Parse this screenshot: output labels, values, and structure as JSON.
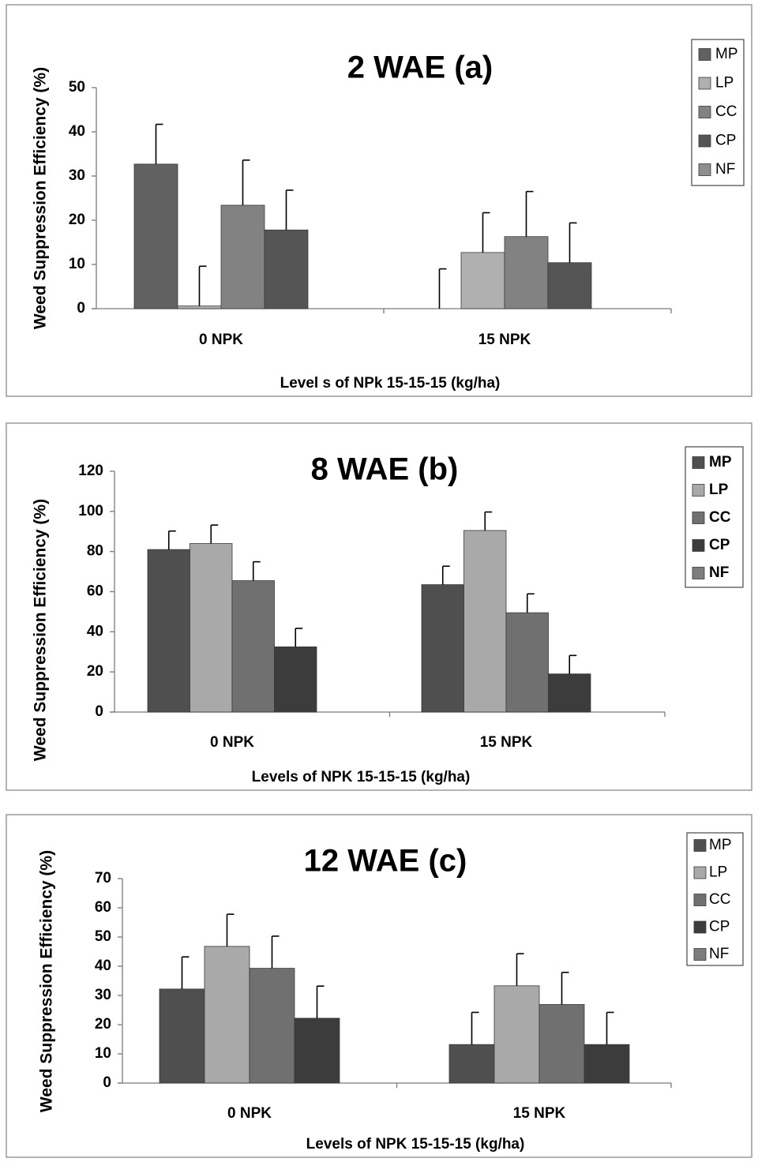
{
  "chart_data": [
    {
      "type": "bar",
      "title": "2 WAE (a)",
      "xlabel": "Level s of NPk  15-15-15  (kg/ha)",
      "ylabel": "Weed Suppression Efficiency (%)",
      "ylim": [
        0,
        50
      ],
      "yticks": [
        0,
        10,
        20,
        30,
        40,
        50
      ],
      "categories": [
        "0 NPK",
        "15 NPK"
      ],
      "series": [
        {
          "name": "MP",
          "values": [
            32.7,
            0
          ],
          "errors": [
            9.0,
            9.0
          ],
          "color": "#616161"
        },
        {
          "name": "LP",
          "values": [
            0.6,
            12.7
          ],
          "errors": [
            9.0,
            9.0
          ],
          "color": "#b0b0b0"
        },
        {
          "name": "CC",
          "values": [
            23.4,
            16.3
          ],
          "errors": [
            10.2,
            10.2
          ],
          "color": "#828282"
        },
        {
          "name": "CP",
          "values": [
            17.8,
            10.4
          ],
          "errors": [
            9.0,
            9.0
          ],
          "color": "#555555"
        },
        {
          "name": "NF",
          "values": [
            0,
            0
          ],
          "errors": [
            0,
            0
          ],
          "color": "#8e8e8e"
        }
      ],
      "legend_position": "top-right",
      "grid": false
    },
    {
      "type": "bar",
      "title": "8 WAE (b)",
      "xlabel": "Levels of NPK 15-15-15 (kg/ha)",
      "ylabel": "Weed Suppression Efficiency (%)",
      "ylim": [
        0,
        120
      ],
      "yticks": [
        0,
        20,
        40,
        60,
        80,
        100,
        120
      ],
      "categories": [
        "0 NPK",
        "15 NPK"
      ],
      "series": [
        {
          "name": "MP",
          "values": [
            81,
            63.5
          ],
          "errors": [
            9.2,
            9.2
          ],
          "color": "#4f4f4f"
        },
        {
          "name": "LP",
          "values": [
            84,
            90.5
          ],
          "errors": [
            9.2,
            9.2
          ],
          "color": "#a9a9a9"
        },
        {
          "name": "CC",
          "values": [
            65.5,
            49.5
          ],
          "errors": [
            9.4,
            9.4
          ],
          "color": "#707070"
        },
        {
          "name": "CP",
          "values": [
            32.5,
            19
          ],
          "errors": [
            9.2,
            9.2
          ],
          "color": "#3c3c3c"
        },
        {
          "name": "NF",
          "values": [
            0,
            0
          ],
          "errors": [
            0,
            0
          ],
          "color": "#7d7d7d"
        }
      ],
      "legend_position": "top-right",
      "grid": false
    },
    {
      "type": "bar",
      "title": "12 WAE (c)",
      "xlabel": "Levels  of NPK 15-15-15 (kg/ha)",
      "ylabel": "Weed Suppression Efficiency (%)",
      "ylim": [
        0,
        70
      ],
      "yticks": [
        0,
        10,
        20,
        30,
        40,
        50,
        60,
        70
      ],
      "categories": [
        "0 NPK",
        "15 NPK"
      ],
      "series": [
        {
          "name": "MP",
          "values": [
            32.2,
            13.2
          ],
          "errors": [
            11.0,
            11.0
          ],
          "color": "#4f4f4f"
        },
        {
          "name": "LP",
          "values": [
            46.8,
            33.3
          ],
          "errors": [
            11.0,
            11.0
          ],
          "color": "#a9a9a9"
        },
        {
          "name": "CC",
          "values": [
            39.3,
            26.9
          ],
          "errors": [
            11.0,
            11.0
          ],
          "color": "#707070"
        },
        {
          "name": "CP",
          "values": [
            22.2,
            13.2
          ],
          "errors": [
            11.0,
            11.0
          ],
          "color": "#3c3c3c"
        },
        {
          "name": "NF",
          "values": [
            0,
            0
          ],
          "errors": [
            0,
            0
          ],
          "color": "#7d7d7d"
        }
      ],
      "legend_position": "top-right",
      "grid": false
    }
  ]
}
